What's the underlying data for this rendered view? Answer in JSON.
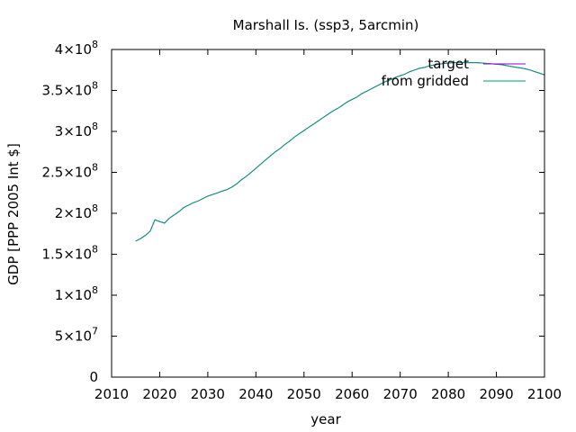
{
  "chart_data": {
    "type": "line",
    "title": "Marshall Is. (ssp3, 5arcmin)",
    "xlabel": "year",
    "ylabel": "GDP [PPP 2005 Int $]",
    "xlim": [
      2010,
      2100
    ],
    "ylim": [
      0,
      400000000
    ],
    "x_ticks": [
      {
        "value": 2010,
        "label": "2010"
      },
      {
        "value": 2020,
        "label": "2020"
      },
      {
        "value": 2030,
        "label": "2030"
      },
      {
        "value": 2040,
        "label": "2040"
      },
      {
        "value": 2050,
        "label": "2050"
      },
      {
        "value": 2060,
        "label": "2060"
      },
      {
        "value": 2070,
        "label": "2070"
      },
      {
        "value": 2080,
        "label": "2080"
      },
      {
        "value": 2090,
        "label": "2090"
      },
      {
        "value": 2100,
        "label": "2100"
      }
    ],
    "y_ticks": [
      {
        "value": 0,
        "mant": "0",
        "exp": ""
      },
      {
        "value": 50000000,
        "mant": "5×10",
        "exp": "7"
      },
      {
        "value": 100000000,
        "mant": "1×10",
        "exp": "8"
      },
      {
        "value": 150000000,
        "mant": "1.5×10",
        "exp": "8"
      },
      {
        "value": 200000000,
        "mant": "2×10",
        "exp": "8"
      },
      {
        "value": 250000000,
        "mant": "2.5×10",
        "exp": "8"
      },
      {
        "value": 300000000,
        "mant": "3×10",
        "exp": "8"
      },
      {
        "value": 350000000,
        "mant": "3.5×10",
        "exp": "8"
      },
      {
        "value": 400000000,
        "mant": "4×10",
        "exp": "8"
      }
    ],
    "grid": false,
    "legend_position": "top-right",
    "series": [
      {
        "name": "target",
        "color": "#9400d3",
        "x": [
          2015,
          2016,
          2017,
          2018,
          2019,
          2020,
          2021,
          2022,
          2023,
          2024,
          2025,
          2026,
          2027,
          2028,
          2029,
          2030,
          2031,
          2032,
          2033,
          2034,
          2035,
          2036,
          2037,
          2038,
          2039,
          2040,
          2041,
          2042,
          2043,
          2044,
          2045,
          2046,
          2047,
          2048,
          2049,
          2050,
          2051,
          2052,
          2053,
          2054,
          2055,
          2056,
          2057,
          2058,
          2059,
          2060,
          2061,
          2062,
          2063,
          2064,
          2065,
          2066,
          2067,
          2068,
          2069,
          2070,
          2071,
          2072,
          2073,
          2074,
          2075,
          2076,
          2077,
          2078,
          2079,
          2080,
          2081,
          2082,
          2083,
          2084,
          2085,
          2086,
          2087,
          2088,
          2089,
          2090,
          2091,
          2092,
          2093,
          2094,
          2095,
          2096,
          2097,
          2098,
          2099,
          2100
        ],
        "values": [
          166000000,
          169000000,
          173000000,
          178000000,
          192000000,
          190000000,
          188000000,
          194000000,
          198000000,
          202000000,
          207000000,
          210000000,
          213000000,
          215000000,
          218000000,
          221000000,
          223000000,
          225000000,
          227000000,
          229000000,
          232000000,
          236000000,
          241000000,
          245000000,
          250000000,
          255000000,
          260000000,
          265000000,
          270000000,
          275000000,
          279000000,
          284000000,
          288000000,
          293000000,
          297000000,
          301000000,
          305000000,
          309000000,
          313000000,
          317000000,
          321000000,
          325000000,
          328000000,
          332000000,
          336000000,
          339000000,
          342000000,
          346000000,
          349000000,
          352000000,
          355000000,
          358000000,
          361000000,
          363000000,
          366000000,
          368000000,
          370000000,
          373000000,
          375000000,
          377000000,
          378000000,
          380000000,
          381000000,
          382000000,
          383000000,
          383500000,
          384000000,
          384000000,
          384000000,
          384000000,
          384000000,
          384000000,
          383500000,
          383000000,
          382500000,
          382000000,
          381500000,
          380500000,
          379500000,
          378500000,
          377500000,
          376500000,
          375000000,
          373000000,
          371000000,
          369000000
        ]
      },
      {
        "name": "from gridded",
        "color": "#009e73",
        "x": [
          2015,
          2016,
          2017,
          2018,
          2019,
          2020,
          2021,
          2022,
          2023,
          2024,
          2025,
          2026,
          2027,
          2028,
          2029,
          2030,
          2031,
          2032,
          2033,
          2034,
          2035,
          2036,
          2037,
          2038,
          2039,
          2040,
          2041,
          2042,
          2043,
          2044,
          2045,
          2046,
          2047,
          2048,
          2049,
          2050,
          2051,
          2052,
          2053,
          2054,
          2055,
          2056,
          2057,
          2058,
          2059,
          2060,
          2061,
          2062,
          2063,
          2064,
          2065,
          2066,
          2067,
          2068,
          2069,
          2070,
          2071,
          2072,
          2073,
          2074,
          2075,
          2076,
          2077,
          2078,
          2079,
          2080,
          2081,
          2082,
          2083,
          2084,
          2085,
          2086,
          2087,
          2088,
          2089,
          2090,
          2091,
          2092,
          2093,
          2094,
          2095,
          2096,
          2097,
          2098,
          2099,
          2100
        ],
        "values": [
          166000000,
          169000000,
          173000000,
          178000000,
          192000000,
          190000000,
          188000000,
          194000000,
          198000000,
          202000000,
          207000000,
          210000000,
          213000000,
          215000000,
          218000000,
          221000000,
          223000000,
          225000000,
          227000000,
          229000000,
          232000000,
          236000000,
          241000000,
          245000000,
          250000000,
          255000000,
          260000000,
          265000000,
          270000000,
          275000000,
          279000000,
          284000000,
          288000000,
          293000000,
          297000000,
          301000000,
          305000000,
          309000000,
          313000000,
          317000000,
          321000000,
          325000000,
          328000000,
          332000000,
          336000000,
          339000000,
          342000000,
          346000000,
          349000000,
          352000000,
          355000000,
          358000000,
          361000000,
          363000000,
          366000000,
          368000000,
          370000000,
          373000000,
          375000000,
          377000000,
          378000000,
          380000000,
          381000000,
          382000000,
          383000000,
          383500000,
          384000000,
          384000000,
          384000000,
          384000000,
          384000000,
          384000000,
          383500000,
          383000000,
          382500000,
          382000000,
          381500000,
          380500000,
          379500000,
          378500000,
          377500000,
          376500000,
          375000000,
          373000000,
          371000000,
          369000000
        ]
      }
    ]
  }
}
